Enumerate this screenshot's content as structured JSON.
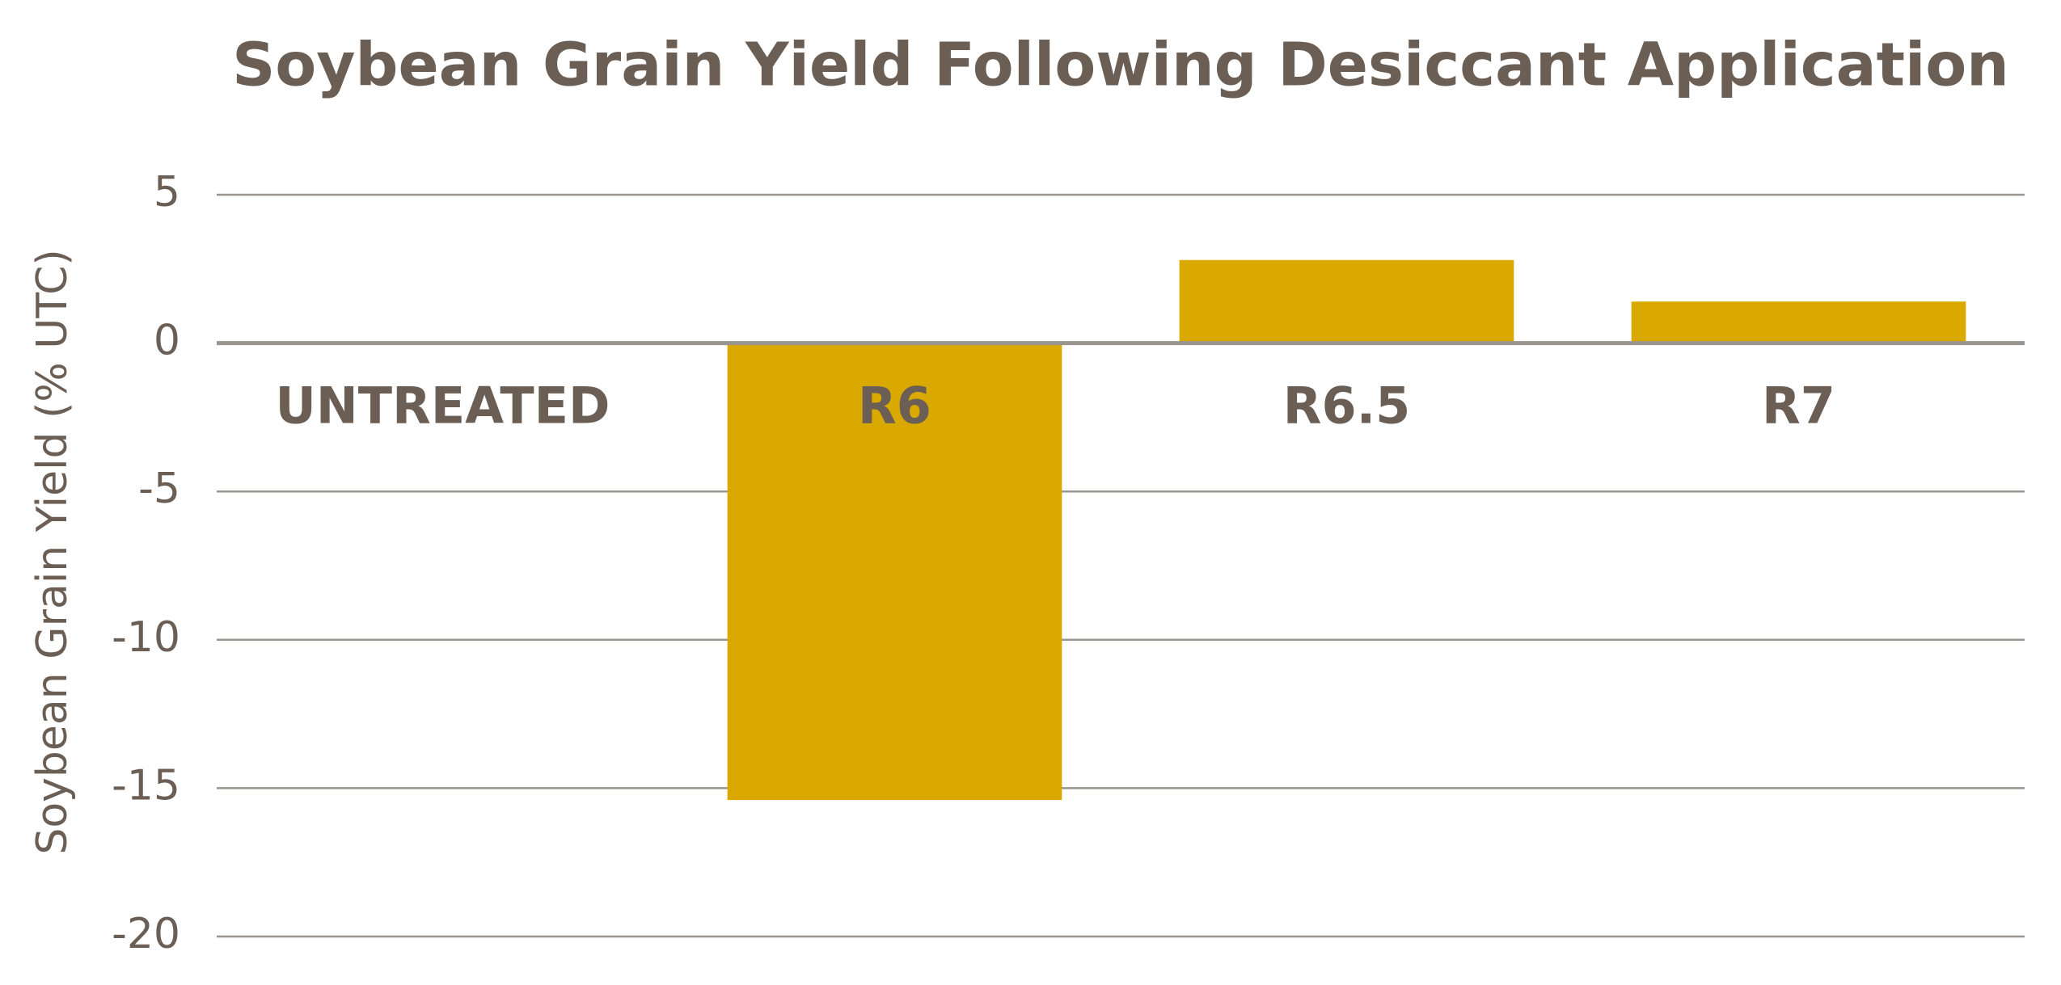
{
  "chart_data": {
    "type": "bar",
    "title": "Soybean Grain Yield Following Desiccant Application",
    "y_label": "Soybean Grain Yield (% UTC)",
    "categories": [
      "UNTREATED",
      "R6",
      "R6.5",
      "R7"
    ],
    "values": [
      0,
      -15.4,
      2.8,
      1.4
    ],
    "color": "#d9a900",
    "ylim": [
      -20,
      5
    ],
    "yticks": [
      -20,
      -15,
      -10,
      -5,
      0,
      5
    ],
    "grid": true
  }
}
